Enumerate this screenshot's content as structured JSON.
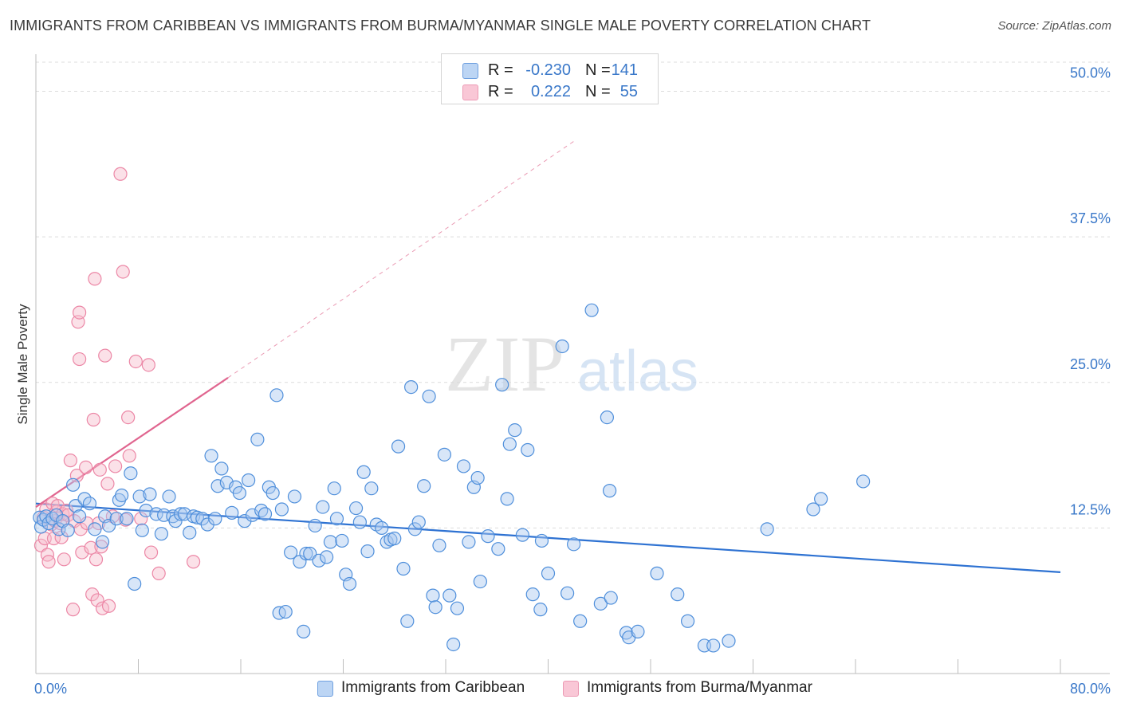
{
  "title": "IMMIGRANTS FROM CARIBBEAN VS IMMIGRANTS FROM BURMA/MYANMAR SINGLE MALE POVERTY CORRELATION CHART",
  "source": "Source: ZipAtlas.com",
  "watermark": {
    "zip": "ZIP",
    "atlas": "atlas"
  },
  "colors": {
    "blue_fill": "#a9c8f0",
    "blue_stroke": "#4f8fdb",
    "blue_line": "#2e72d2",
    "pink_fill": "#f7bccd",
    "pink_stroke": "#ec87a6",
    "pink_line": "#e0658f",
    "grid": "#dcdcdc",
    "tick_label": "#3a78c9"
  },
  "legend": {
    "rows": [
      {
        "r_label": "R =",
        "r_value": "-0.230",
        "n_label": "N =",
        "n_value": "141"
      },
      {
        "r_label": "R =",
        "r_value": "0.222",
        "n_label": "N =",
        "n_value": "55"
      }
    ]
  },
  "bottom_legend": {
    "series1": "Immigrants from Caribbean",
    "series2": "Immigrants from Burma/Myanmar"
  },
  "chart_data": {
    "type": "scatter",
    "title": "IMMIGRANTS FROM CARIBBEAN VS IMMIGRANTS FROM BURMA/MYANMAR SINGLE MALE POVERTY CORRELATION CHART",
    "xlabel": "",
    "ylabel": "Single Male Poverty",
    "xlim": [
      0,
      80
    ],
    "ylim": [
      0,
      52.5
    ],
    "x_ticks": [
      {
        "value": 0,
        "label": "0.0%"
      },
      {
        "value": 80,
        "label": "80.0%"
      }
    ],
    "y_ticks": [
      {
        "value": 12.5,
        "label": "12.5%"
      },
      {
        "value": 25,
        "label": "25.0%"
      },
      {
        "value": 37.5,
        "label": "37.5%"
      },
      {
        "value": 50,
        "label": "50.0%"
      }
    ],
    "grid": "horizontal dashed",
    "series": [
      {
        "name": "Immigrants from Caribbean",
        "color": "#4f8fdb",
        "r": -0.23,
        "n": 141,
        "trend": {
          "x0": 0,
          "y0": 14.6,
          "x1": 80,
          "y1": 8.7
        },
        "points": [
          [
            0.3,
            13.4
          ],
          [
            0.4,
            12.6
          ],
          [
            0.6,
            13.2
          ],
          [
            0.8,
            13.5
          ],
          [
            1.0,
            12.9
          ],
          [
            1.3,
            13.3
          ],
          [
            1.6,
            13.6
          ],
          [
            1.8,
            12.4
          ],
          [
            2.1,
            13.1
          ],
          [
            2.5,
            12.3
          ],
          [
            2.9,
            16.2
          ],
          [
            3.1,
            14.4
          ],
          [
            3.4,
            13.5
          ],
          [
            3.8,
            15.0
          ],
          [
            4.2,
            14.6
          ],
          [
            4.6,
            12.4
          ],
          [
            5.2,
            11.3
          ],
          [
            5.4,
            13.5
          ],
          [
            5.7,
            12.7
          ],
          [
            6.3,
            13.3
          ],
          [
            6.5,
            14.9
          ],
          [
            6.7,
            15.3
          ],
          [
            7.1,
            13.3
          ],
          [
            7.4,
            17.2
          ],
          [
            7.7,
            7.7
          ],
          [
            8.1,
            15.2
          ],
          [
            8.3,
            12.3
          ],
          [
            8.6,
            14.0
          ],
          [
            8.9,
            15.4
          ],
          [
            9.4,
            13.7
          ],
          [
            9.8,
            12.0
          ],
          [
            10.0,
            13.6
          ],
          [
            10.4,
            15.2
          ],
          [
            10.7,
            13.5
          ],
          [
            10.9,
            13.1
          ],
          [
            11.3,
            13.7
          ],
          [
            11.6,
            13.7
          ],
          [
            12.0,
            12.1
          ],
          [
            12.3,
            13.5
          ],
          [
            12.6,
            13.4
          ],
          [
            13.0,
            13.3
          ],
          [
            13.4,
            12.8
          ],
          [
            13.7,
            18.7
          ],
          [
            14.0,
            13.3
          ],
          [
            14.2,
            16.1
          ],
          [
            14.5,
            17.6
          ],
          [
            14.9,
            16.4
          ],
          [
            15.3,
            13.8
          ],
          [
            15.6,
            16.0
          ],
          [
            15.9,
            15.5
          ],
          [
            16.3,
            13.1
          ],
          [
            16.6,
            16.6
          ],
          [
            16.9,
            13.6
          ],
          [
            17.3,
            20.1
          ],
          [
            17.6,
            14.0
          ],
          [
            17.9,
            13.7
          ],
          [
            18.2,
            16.0
          ],
          [
            18.5,
            15.5
          ],
          [
            18.8,
            23.9
          ],
          [
            19.0,
            5.2
          ],
          [
            19.2,
            14.1
          ],
          [
            19.5,
            5.3
          ],
          [
            19.9,
            10.4
          ],
          [
            20.2,
            15.2
          ],
          [
            20.6,
            9.6
          ],
          [
            20.9,
            3.6
          ],
          [
            21.1,
            10.3
          ],
          [
            21.4,
            10.3
          ],
          [
            21.8,
            12.7
          ],
          [
            22.1,
            9.7
          ],
          [
            22.4,
            14.3
          ],
          [
            22.7,
            10.0
          ],
          [
            23.0,
            11.3
          ],
          [
            23.3,
            15.9
          ],
          [
            23.5,
            13.3
          ],
          [
            23.9,
            11.4
          ],
          [
            24.2,
            8.5
          ],
          [
            24.5,
            7.7
          ],
          [
            25.0,
            14.2
          ],
          [
            25.3,
            13.0
          ],
          [
            25.6,
            17.3
          ],
          [
            25.9,
            10.5
          ],
          [
            26.2,
            15.9
          ],
          [
            26.6,
            12.8
          ],
          [
            27.0,
            12.5
          ],
          [
            27.4,
            11.3
          ],
          [
            27.7,
            11.5
          ],
          [
            28.0,
            11.6
          ],
          [
            28.3,
            19.5
          ],
          [
            28.7,
            9.0
          ],
          [
            29.0,
            4.5
          ],
          [
            29.3,
            24.6
          ],
          [
            29.6,
            12.4
          ],
          [
            29.9,
            13.0
          ],
          [
            30.3,
            16.1
          ],
          [
            30.7,
            23.8
          ],
          [
            31.0,
            6.7
          ],
          [
            31.2,
            5.7
          ],
          [
            31.5,
            11.0
          ],
          [
            31.9,
            18.8
          ],
          [
            32.3,
            6.7
          ],
          [
            32.6,
            2.5
          ],
          [
            32.9,
            5.6
          ],
          [
            33.4,
            17.8
          ],
          [
            33.8,
            11.3
          ],
          [
            34.2,
            16.0
          ],
          [
            34.5,
            16.8
          ],
          [
            34.7,
            7.9
          ],
          [
            35.3,
            11.8
          ],
          [
            36.1,
            10.7
          ],
          [
            36.4,
            24.8
          ],
          [
            36.8,
            15.0
          ],
          [
            37.0,
            19.7
          ],
          [
            37.4,
            20.9
          ],
          [
            38.0,
            11.9
          ],
          [
            38.4,
            19.2
          ],
          [
            38.8,
            6.8
          ],
          [
            39.4,
            5.5
          ],
          [
            39.5,
            11.4
          ],
          [
            40.0,
            8.6
          ],
          [
            41.1,
            28.1
          ],
          [
            41.5,
            6.9
          ],
          [
            42.0,
            11.1
          ],
          [
            42.5,
            4.5
          ],
          [
            43.4,
            31.2
          ],
          [
            44.1,
            6.0
          ],
          [
            44.6,
            22.0
          ],
          [
            44.8,
            15.7
          ],
          [
            44.9,
            6.5
          ],
          [
            46.1,
            3.5
          ],
          [
            46.3,
            3.1
          ],
          [
            47.0,
            3.6
          ],
          [
            48.5,
            8.6
          ],
          [
            50.1,
            6.8
          ],
          [
            50.9,
            4.5
          ],
          [
            52.2,
            2.4
          ],
          [
            52.9,
            2.4
          ],
          [
            54.1,
            2.8
          ],
          [
            57.1,
            12.4
          ],
          [
            60.7,
            14.1
          ],
          [
            61.3,
            15.0
          ],
          [
            64.6,
            16.5
          ]
        ]
      },
      {
        "name": "Immigrants from Burma/Myanmar",
        "color": "#ec87a6",
        "r": 0.222,
        "n": 55,
        "trend": {
          "x0": 0,
          "y0": 14.3,
          "x1": 15,
          "y1": 25.4,
          "dashed_to": {
            "x": 42,
            "y": 45.7
          }
        },
        "points": [
          [
            0.4,
            11.0
          ],
          [
            0.6,
            13.4
          ],
          [
            0.7,
            11.6
          ],
          [
            0.8,
            14.1
          ],
          [
            0.9,
            10.2
          ],
          [
            1.0,
            9.6
          ],
          [
            1.2,
            12.8
          ],
          [
            1.3,
            14.6
          ],
          [
            1.4,
            11.6
          ],
          [
            1.5,
            13.1
          ],
          [
            1.6,
            13.9
          ],
          [
            1.7,
            14.4
          ],
          [
            1.9,
            12.9
          ],
          [
            2.0,
            11.7
          ],
          [
            2.1,
            13.7
          ],
          [
            2.2,
            9.8
          ],
          [
            2.4,
            14.0
          ],
          [
            2.5,
            13.6
          ],
          [
            2.7,
            18.3
          ],
          [
            2.9,
            5.5
          ],
          [
            3.0,
            13.1
          ],
          [
            3.2,
            17.0
          ],
          [
            3.3,
            30.2
          ],
          [
            3.4,
            31.0
          ],
          [
            3.4,
            27.0
          ],
          [
            3.5,
            12.4
          ],
          [
            3.6,
            10.4
          ],
          [
            3.9,
            17.7
          ],
          [
            4.0,
            12.9
          ],
          [
            4.3,
            10.8
          ],
          [
            4.4,
            6.8
          ],
          [
            4.5,
            21.8
          ],
          [
            4.6,
            33.9
          ],
          [
            4.7,
            9.8
          ],
          [
            4.8,
            6.3
          ],
          [
            4.9,
            12.9
          ],
          [
            5.0,
            17.5
          ],
          [
            5.1,
            10.9
          ],
          [
            5.2,
            5.6
          ],
          [
            5.4,
            27.3
          ],
          [
            5.6,
            16.3
          ],
          [
            5.7,
            5.8
          ],
          [
            6.0,
            13.5
          ],
          [
            6.2,
            17.8
          ],
          [
            6.6,
            42.9
          ],
          [
            6.8,
            34.5
          ],
          [
            7.0,
            13.2
          ],
          [
            7.2,
            22.0
          ],
          [
            7.3,
            18.7
          ],
          [
            7.8,
            26.8
          ],
          [
            8.2,
            13.3
          ],
          [
            8.8,
            26.5
          ],
          [
            9.0,
            10.4
          ],
          [
            9.6,
            8.6
          ],
          [
            12.3,
            9.6
          ]
        ]
      }
    ]
  }
}
